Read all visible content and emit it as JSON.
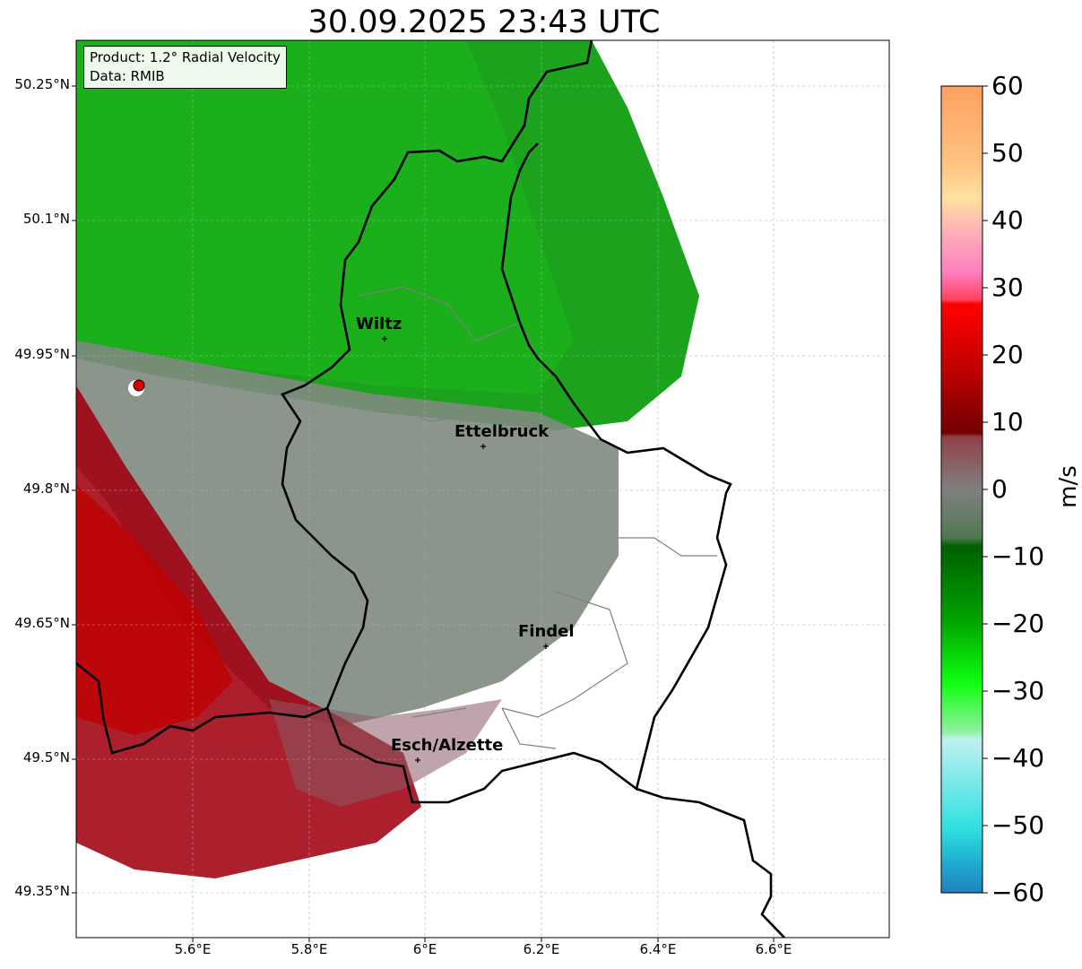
{
  "title": "30.09.2025 23:43 UTC",
  "info": {
    "product": "Product: 1.2° Radial Velocity",
    "data": "Data: RMIB"
  },
  "latitude_labels": [
    "50.25°N",
    "50.1°N",
    "49.95°N",
    "49.8°N",
    "49.65°N",
    "49.5°N",
    "49.35°N"
  ],
  "longitude_labels": [
    "5.6°E",
    "5.8°E",
    "6°E",
    "6.2°E",
    "6.4°E",
    "6.6°E"
  ],
  "cities": [
    {
      "name": "Wiltz"
    },
    {
      "name": "Ettelbruck"
    },
    {
      "name": "Findel"
    },
    {
      "name": "Esch/Alzette"
    }
  ],
  "colorbar": {
    "label": "m/s",
    "ticks": [
      "60",
      "50",
      "40",
      "30",
      "20",
      "10",
      "0",
      "−10",
      "−20",
      "−30",
      "−40",
      "−50",
      "−60"
    ],
    "range": [
      -60,
      60
    ]
  },
  "colors": {
    "receding_red": "#8b0000",
    "approaching_green": "#008000",
    "zero_gray": "#7f8a7f",
    "border": "#000000",
    "radar_site": "#e00000"
  }
}
